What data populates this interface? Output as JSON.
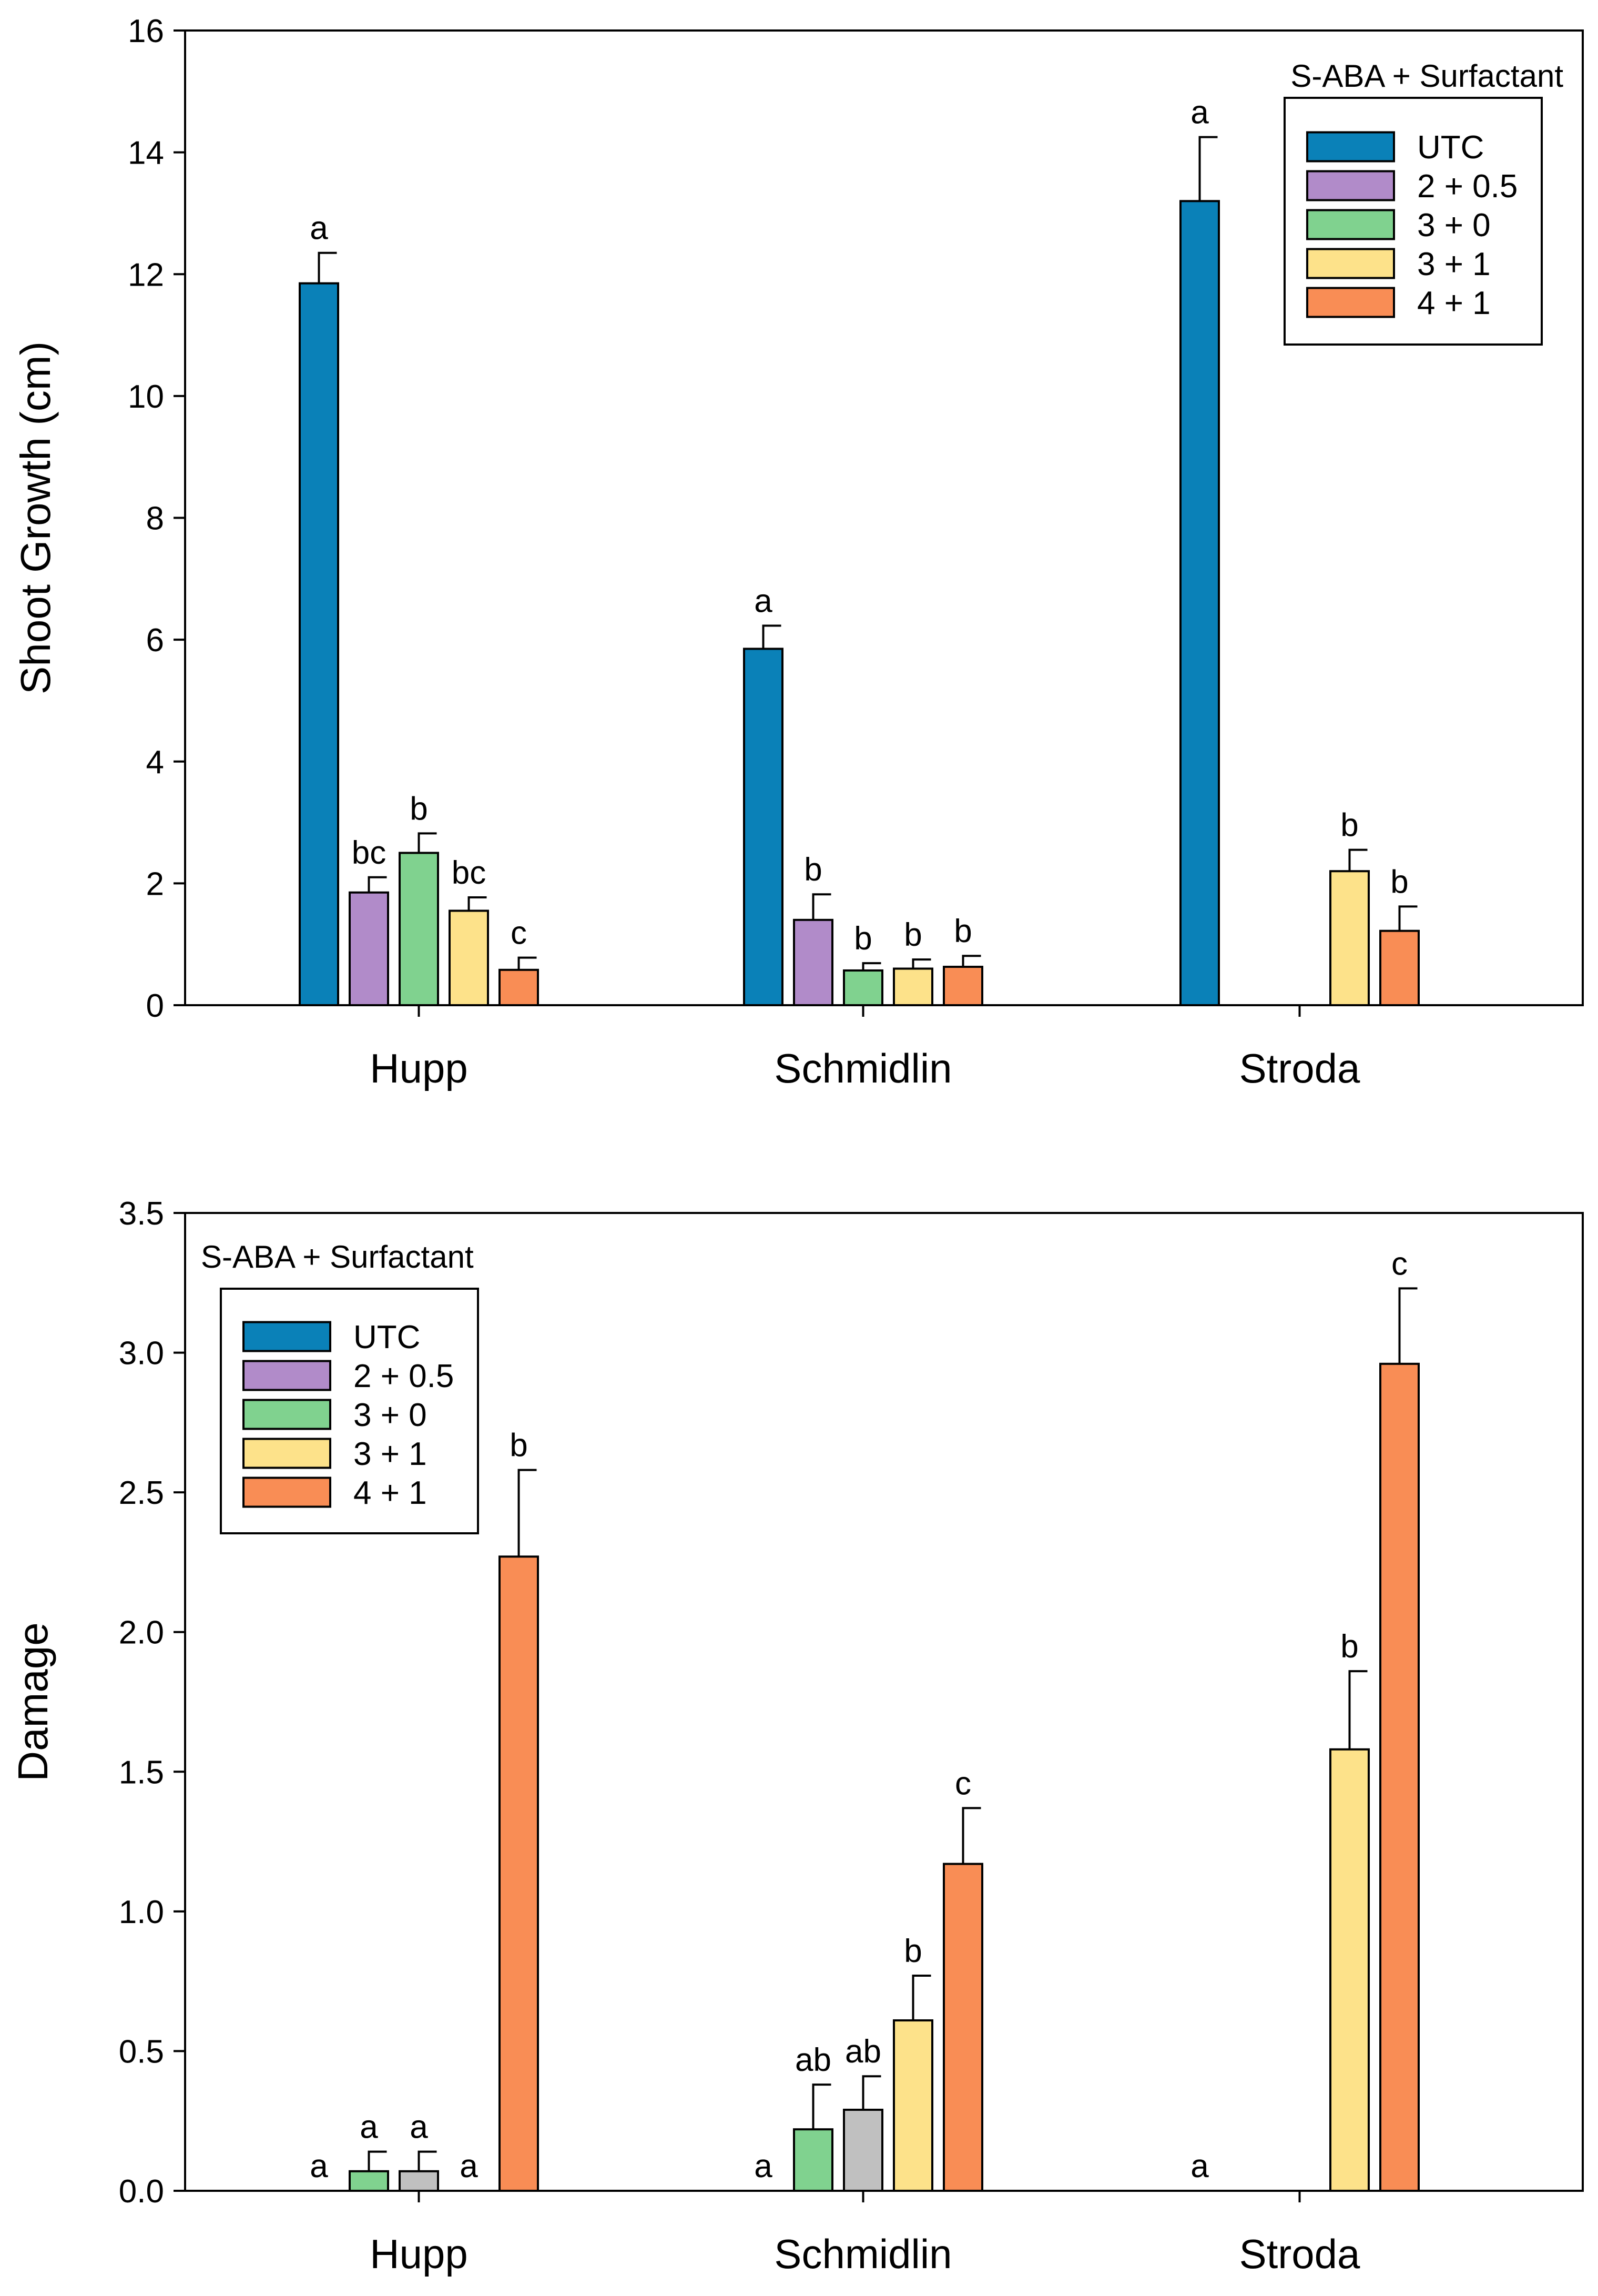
{
  "colors": {
    "UTC": "#0a81b8",
    "2 + 0.5": "#b18bc9",
    "3 + 0": "#80d28f",
    "3 + 1": "#fde28a",
    "4 + 1": "#f98d55",
    "gray": "#c0c0c0"
  },
  "chart_data": [
    {
      "type": "bar",
      "id": "shoot",
      "ylabel": "Shoot Growth (cm)",
      "xlabel": "",
      "ylim": [
        0,
        16
      ],
      "yticks": [
        "0",
        "2",
        "4",
        "6",
        "8",
        "10",
        "12",
        "14",
        "16"
      ],
      "yticks_values": [
        0,
        2,
        4,
        6,
        8,
        10,
        12,
        14,
        16
      ],
      "categories": [
        "Hupp",
        "Schmidlin",
        "Stroda"
      ],
      "legend": {
        "title": "S-ABA + Surfactant",
        "placement": "top-right",
        "entries": [
          "UTC",
          "2 + 0.5",
          "3 + 0",
          "3 + 1",
          "4 + 1"
        ]
      },
      "bars": [
        {
          "group": "Hupp",
          "treatment": "UTC",
          "color_key": "UTC",
          "value": 11.85,
          "error": 0.5,
          "label": "a",
          "slot": 0
        },
        {
          "group": "Hupp",
          "treatment": "2 + 0.5",
          "color_key": "2 + 0.5",
          "value": 1.85,
          "error": 0.25,
          "label": "bc",
          "slot": 1
        },
        {
          "group": "Hupp",
          "treatment": "3 + 0",
          "color_key": "3 + 0",
          "value": 2.5,
          "error": 0.32,
          "label": "b",
          "slot": 2
        },
        {
          "group": "Hupp",
          "treatment": "3 + 1",
          "color_key": "3 + 1",
          "value": 1.55,
          "error": 0.22,
          "label": "bc",
          "slot": 3
        },
        {
          "group": "Hupp",
          "treatment": "4 + 1",
          "color_key": "4 + 1",
          "value": 0.58,
          "error": 0.2,
          "label": "c",
          "slot": 4
        },
        {
          "group": "Schmidlin",
          "treatment": "UTC",
          "color_key": "UTC",
          "value": 5.85,
          "error": 0.38,
          "label": "a",
          "slot": 0
        },
        {
          "group": "Schmidlin",
          "treatment": "2 + 0.5",
          "color_key": "2 + 0.5",
          "value": 1.4,
          "error": 0.42,
          "label": "b",
          "slot": 1
        },
        {
          "group": "Schmidlin",
          "treatment": "3 + 0",
          "color_key": "3 + 0",
          "value": 0.57,
          "error": 0.12,
          "label": "b",
          "slot": 2
        },
        {
          "group": "Schmidlin",
          "treatment": "3 + 1",
          "color_key": "3 + 1",
          "value": 0.6,
          "error": 0.15,
          "label": "b",
          "slot": 3
        },
        {
          "group": "Schmidlin",
          "treatment": "4 + 1",
          "color_key": "4 + 1",
          "value": 0.63,
          "error": 0.18,
          "label": "b",
          "slot": 4
        },
        {
          "group": "Stroda",
          "treatment": "UTC",
          "color_key": "UTC",
          "value": 13.2,
          "error": 1.05,
          "label": "a",
          "slot": 0
        },
        {
          "group": "Stroda",
          "treatment": "3 + 1",
          "color_key": "3 + 1",
          "value": 2.2,
          "error": 0.35,
          "label": "b",
          "slot": 3
        },
        {
          "group": "Stroda",
          "treatment": "4 + 1",
          "color_key": "4 + 1",
          "value": 1.22,
          "error": 0.4,
          "label": "b",
          "slot": 4
        }
      ]
    },
    {
      "type": "bar",
      "id": "damage",
      "ylabel": "Damage",
      "xlabel": "",
      "ylim": [
        0,
        3.5
      ],
      "yticks": [
        "0.0",
        "0.5",
        "1.0",
        "1.5",
        "2.0",
        "2.5",
        "3.0",
        "3.5"
      ],
      "yticks_values": [
        0,
        0.5,
        1.0,
        1.5,
        2.0,
        2.5,
        3.0,
        3.5
      ],
      "categories": [
        "Hupp",
        "Schmidlin",
        "Stroda"
      ],
      "legend": {
        "title": "S-ABA + Surfactant",
        "placement": "top-left",
        "entries": [
          "UTC",
          "2 + 0.5",
          "3 + 0",
          "3 + 1",
          "4 + 1"
        ]
      },
      "bars": [
        {
          "group": "Hupp",
          "treatment": "UTC",
          "color_key": "UTC",
          "value": 0,
          "error": 0,
          "label": "a",
          "slot": 0
        },
        {
          "group": "Hupp",
          "treatment": "3 + 0",
          "color_key": "3 + 0",
          "value": 0.07,
          "error": 0.07,
          "label": "a",
          "slot": 1
        },
        {
          "group": "Hupp",
          "treatment": "2 + 0.5",
          "color_key": "gray",
          "value": 0.07,
          "error": 0.07,
          "label": "a",
          "slot": 2
        },
        {
          "group": "Hupp",
          "treatment": "3 + 1",
          "color_key": "3 + 1",
          "value": 0,
          "error": 0,
          "label": "a",
          "slot": 3
        },
        {
          "group": "Hupp",
          "treatment": "4 + 1",
          "color_key": "4 + 1",
          "value": 2.27,
          "error": 0.31,
          "label": "b",
          "slot": 4
        },
        {
          "group": "Schmidlin",
          "treatment": "UTC",
          "color_key": "UTC",
          "value": 0,
          "error": 0,
          "label": "a",
          "slot": 0
        },
        {
          "group": "Schmidlin",
          "treatment": "3 + 0",
          "color_key": "3 + 0",
          "value": 0.22,
          "error": 0.16,
          "label": "ab",
          "slot": 1
        },
        {
          "group": "Schmidlin",
          "treatment": "2 + 0.5",
          "color_key": "gray",
          "value": 0.29,
          "error": 0.12,
          "label": "ab",
          "slot": 2
        },
        {
          "group": "Schmidlin",
          "treatment": "3 + 1",
          "color_key": "3 + 1",
          "value": 0.61,
          "error": 0.16,
          "label": "b",
          "slot": 3
        },
        {
          "group": "Schmidlin",
          "treatment": "4 + 1",
          "color_key": "4 + 1",
          "value": 1.17,
          "error": 0.2,
          "label": "c",
          "slot": 4
        },
        {
          "group": "Stroda",
          "treatment": "UTC",
          "color_key": "UTC",
          "value": 0,
          "error": 0,
          "label": "a",
          "slot": 0
        },
        {
          "group": "Stroda",
          "treatment": "3 + 1",
          "color_key": "3 + 1",
          "value": 1.58,
          "error": 0.28,
          "label": "b",
          "slot": 3
        },
        {
          "group": "Stroda",
          "treatment": "4 + 1",
          "color_key": "4 + 1",
          "value": 2.96,
          "error": 0.27,
          "label": "c",
          "slot": 4
        }
      ]
    }
  ]
}
